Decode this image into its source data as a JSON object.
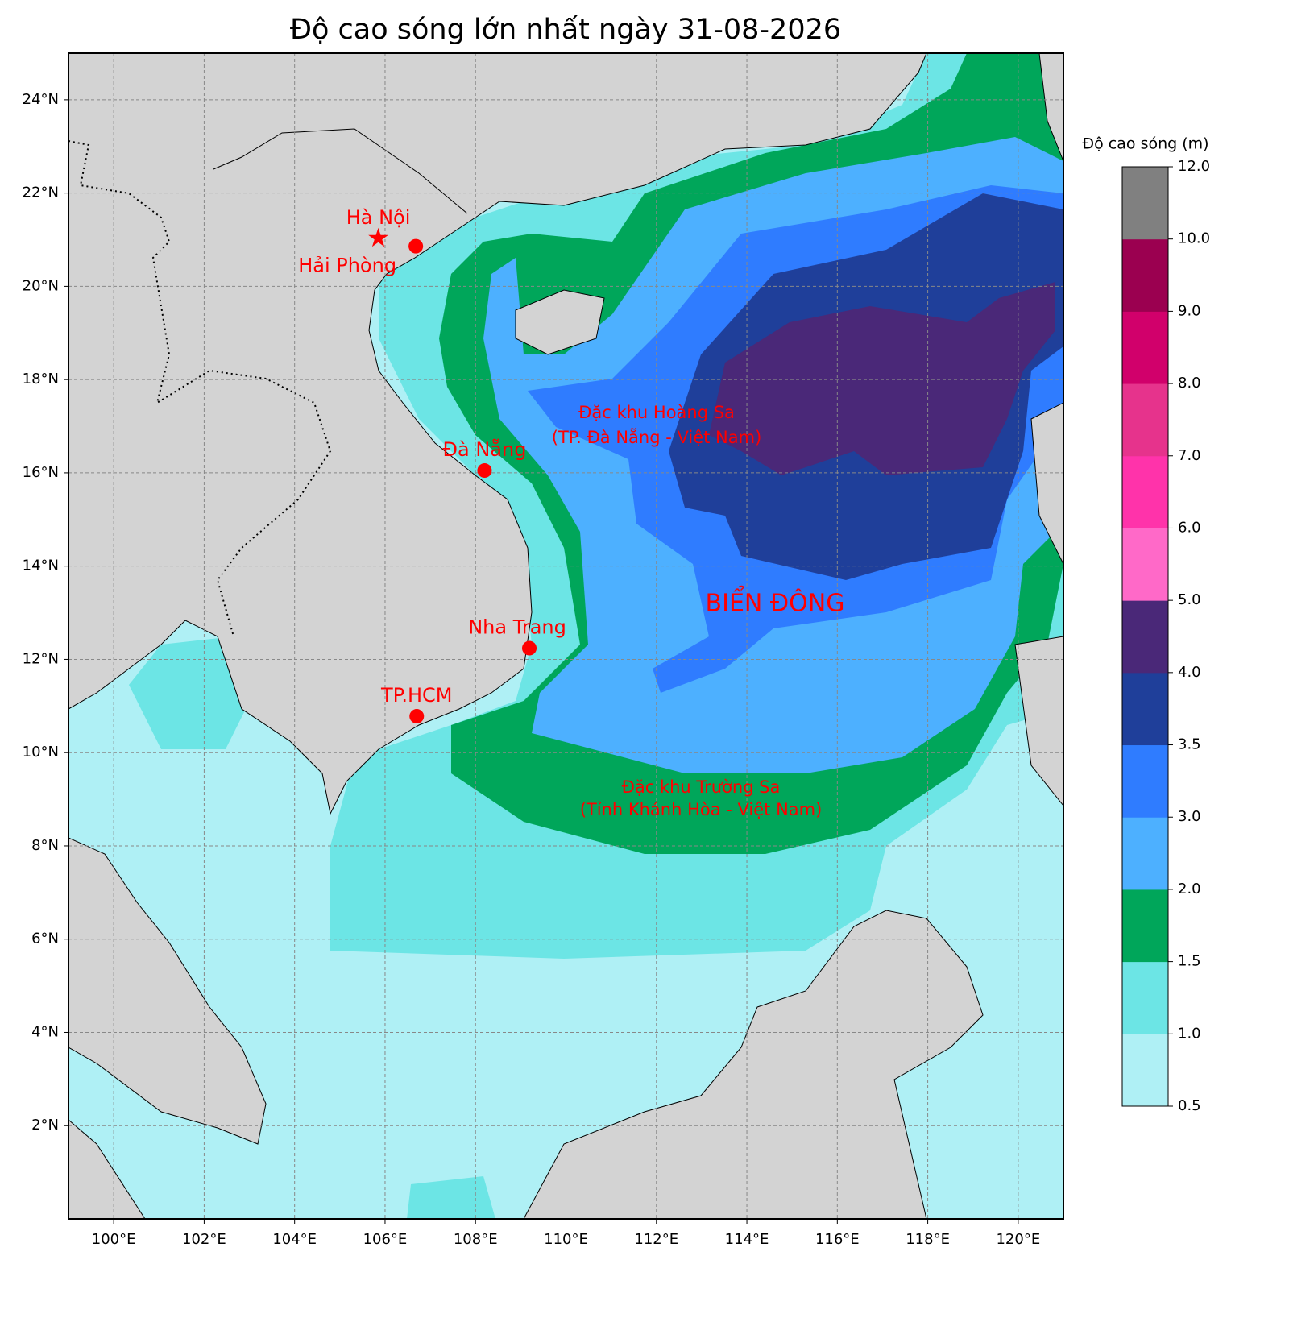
{
  "chart_data": {
    "type": "map",
    "title": "Độ cao sóng lớn nhất ngày 31-08-2026",
    "xlim": [
      99,
      121
    ],
    "ylim": [
      0,
      25
    ],
    "xticks": [
      {
        "value": 100,
        "label": "100°E"
      },
      {
        "value": 102,
        "label": "102°E"
      },
      {
        "value": 104,
        "label": "104°E"
      },
      {
        "value": 106,
        "label": "106°E"
      },
      {
        "value": 108,
        "label": "108°E"
      },
      {
        "value": 110,
        "label": "110°E"
      },
      {
        "value": 112,
        "label": "112°E"
      },
      {
        "value": 114,
        "label": "114°E"
      },
      {
        "value": 116,
        "label": "116°E"
      },
      {
        "value": 118,
        "label": "118°E"
      },
      {
        "value": 120,
        "label": "120°E"
      }
    ],
    "yticks": [
      {
        "value": 2,
        "label": "2°N"
      },
      {
        "value": 4,
        "label": "4°N"
      },
      {
        "value": 6,
        "label": "6°N"
      },
      {
        "value": 8,
        "label": "8°N"
      },
      {
        "value": 10,
        "label": "10°N"
      },
      {
        "value": 12,
        "label": "12°N"
      },
      {
        "value": 14,
        "label": "14°N"
      },
      {
        "value": 16,
        "label": "16°N"
      },
      {
        "value": 18,
        "label": "18°N"
      },
      {
        "value": 20,
        "label": "20°N"
      },
      {
        "value": 22,
        "label": "22°N"
      },
      {
        "value": 24,
        "label": "24°N"
      }
    ],
    "grid": true,
    "colorbar": {
      "label": "Độ cao sóng (m)",
      "levels": [
        0.5,
        {
          "value": 1,
          "label": "1.0"
        },
        1.5,
        {
          "value": 2,
          "label": "2.0"
        },
        {
          "value": 3,
          "label": "3.0"
        },
        3.5,
        {
          "value": 4,
          "label": "4.0"
        },
        {
          "value": 5,
          "label": "5.0"
        },
        {
          "value": 6,
          "label": "6.0"
        },
        {
          "value": 7,
          "label": "7.0"
        },
        {
          "value": 8,
          "label": "8.0"
        },
        {
          "value": 9,
          "label": "9.0"
        },
        {
          "value": 10,
          "label": "10.0"
        },
        {
          "value": 12,
          "label": "12.0"
        }
      ],
      "colors": [
        "#aff0f5",
        "#6ce5e5",
        "#00a65a",
        "#4db0ff",
        "#2f7cff",
        "#1f3f9a",
        "#4a2878",
        "#ff69c8",
        "#ff33aa",
        "#e6338c",
        "#d1006b",
        "#9b0050",
        "#808080"
      ]
    },
    "cities": [
      {
        "name": "Hà Nội",
        "lon": 105.85,
        "lat": 21.03,
        "marker": "star"
      },
      {
        "name": "Hải Phòng",
        "lon": 106.68,
        "lat": 20.86,
        "marker": "circle"
      },
      {
        "name": "Đà Nẵng",
        "lon": 108.2,
        "lat": 16.05,
        "marker": "circle"
      },
      {
        "name": "Nha Trang",
        "lon": 109.19,
        "lat": 12.24,
        "marker": "circle"
      },
      {
        "name": "TP.HCM",
        "lon": 106.7,
        "lat": 10.78,
        "marker": "circle"
      }
    ],
    "annotations": [
      "Đặc khu Hoàng Sa",
      "(TP. Đà Nẵng - Việt Nam)",
      "BIỂN ĐÔNG",
      "Đặc khu Trường Sa",
      "(Tỉnh Khánh Hòa - Việt Nam)"
    ]
  }
}
